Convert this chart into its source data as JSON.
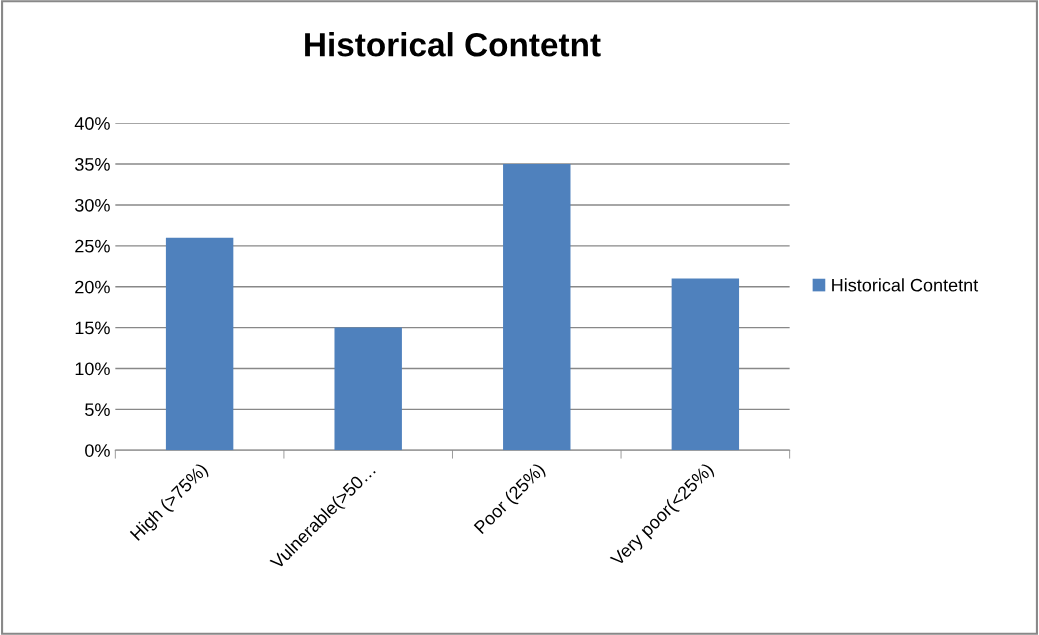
{
  "chart_data": {
    "type": "bar",
    "title": "Historical Contetnt",
    "categories": [
      "High (>75%)",
      "Vulnerable(>50…",
      "Poor (25%)",
      "Very poor(<25%)"
    ],
    "series": [
      {
        "name": "Historical Contetnt",
        "color": "#4f81bd",
        "values": [
          26,
          15,
          35,
          21
        ]
      }
    ],
    "ylim": [
      0,
      40
    ],
    "yticks": [
      {
        "value": 0,
        "label": "0%"
      },
      {
        "value": 5,
        "label": "5%"
      },
      {
        "value": 10,
        "label": "10%"
      },
      {
        "value": 15,
        "label": "15%"
      },
      {
        "value": 20,
        "label": "20%"
      },
      {
        "value": 25,
        "label": "25%"
      },
      {
        "value": 30,
        "label": "30%"
      },
      {
        "value": 35,
        "label": "35%"
      },
      {
        "value": 40,
        "label": "40%"
      }
    ],
    "grid": "y",
    "legend": "right"
  }
}
